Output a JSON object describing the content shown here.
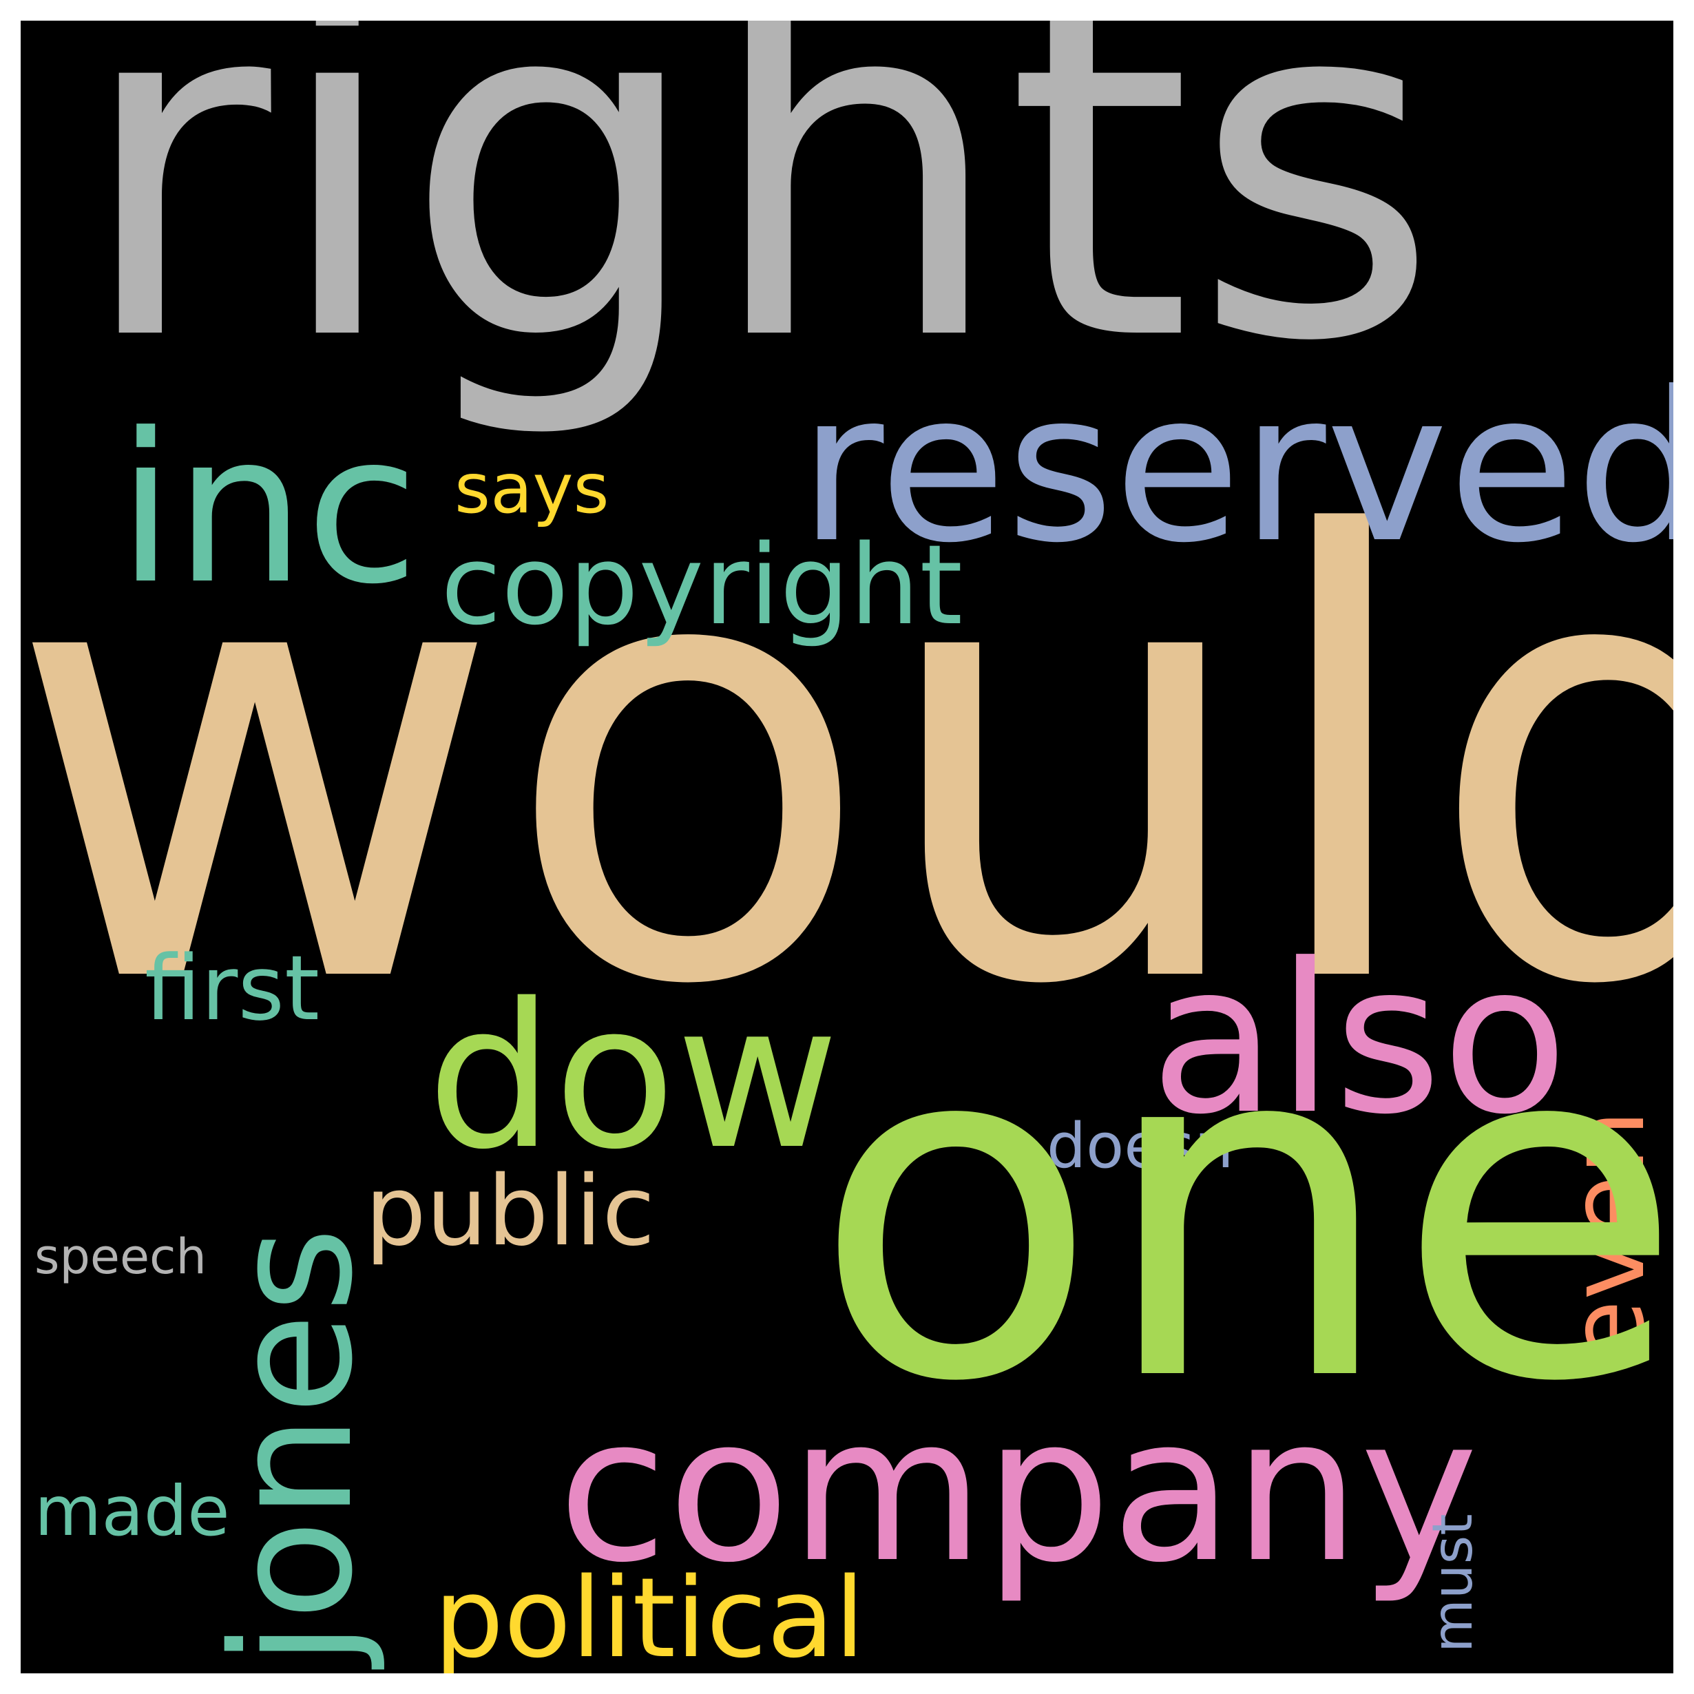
{
  "words": {
    "rights": {
      "text": "rights",
      "color": "#b3b3b3"
    },
    "would": {
      "text": "would",
      "color": "#e5c494"
    },
    "one": {
      "text": "one",
      "color": "#a6d854"
    },
    "reserved": {
      "text": "reserved",
      "color": "#8da0cb"
    },
    "inc": {
      "text": "inc",
      "color": "#66c2a5"
    },
    "says": {
      "text": "says",
      "color": "#ffd92f"
    },
    "copyright": {
      "text": "copyright",
      "color": "#66c2a5"
    },
    "also": {
      "text": "also",
      "color": "#e78ac3"
    },
    "dow": {
      "text": "dow",
      "color": "#a6d854"
    },
    "jones": {
      "text": "jones",
      "color": "#66c2a5"
    },
    "first": {
      "text": "first",
      "color": "#66c2a5"
    },
    "public": {
      "text": "public",
      "color": "#e5c494"
    },
    "doesn": {
      "text": "doesn",
      "color": "#8da0cb"
    },
    "even": {
      "text": "even",
      "color": "#fc8d62"
    },
    "speech": {
      "text": "speech",
      "color": "#b3b3b3"
    },
    "company": {
      "text": "company",
      "color": "#e78ac3"
    },
    "made": {
      "text": "made",
      "color": "#66c2a5"
    },
    "political": {
      "text": "political",
      "color": "#ffd92f"
    },
    "must": {
      "text": "must",
      "color": "#8da0cb"
    }
  }
}
